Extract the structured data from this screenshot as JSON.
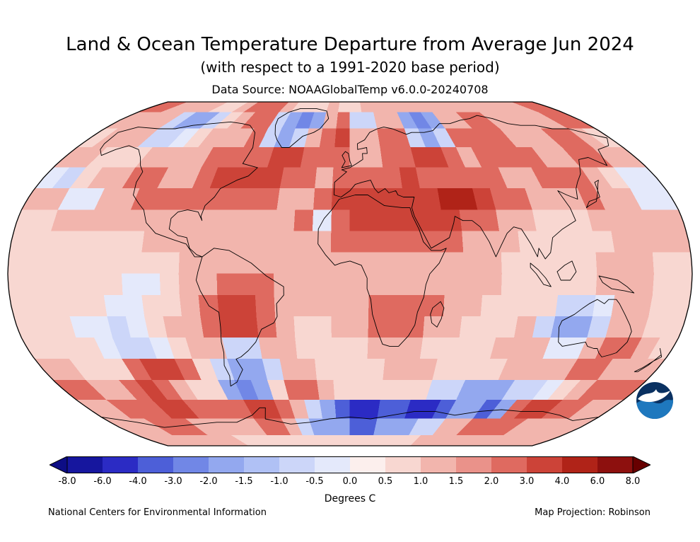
{
  "header": {
    "title": "Land & Ocean Temperature Departure from Average Jun 2024",
    "subtitle": "(with respect to a 1991-2020 base period)",
    "data_source": "Data Source: NOAAGlobalTemp v6.0.0-20240708"
  },
  "footer": {
    "left": "National Centers for Environmental Information",
    "right": "Map Projection: Robinson"
  },
  "colorbar": {
    "label": "Degrees C",
    "ticks": [
      "-8.0",
      "-6.0",
      "-4.0",
      "-3.0",
      "-2.0",
      "-1.5",
      "-1.0",
      "-0.5",
      "0.0",
      "0.5",
      "1.0",
      "1.5",
      "2.0",
      "3.0",
      "4.0",
      "6.0",
      "8.0"
    ]
  },
  "chart_data": {
    "type": "heatmap",
    "title": "Land & Ocean Temperature Departure from Average Jun 2024",
    "units": "Degrees C",
    "projection": "Robinson",
    "base_period": "1991-2020",
    "lat_start": 90,
    "lon_start": -180,
    "lat_step": 10,
    "lon_step": 10,
    "bins": [
      -8,
      -6,
      -4,
      -3,
      -2,
      -1.5,
      -1,
      -0.5,
      0,
      0.5,
      1,
      1.5,
      2,
      3,
      4,
      6,
      8
    ],
    "bin_colors": [
      "#16169e",
      "#2b2bc4",
      "#4d5fd8",
      "#7187e6",
      "#93a8ef",
      "#b0c1f5",
      "#ccd6f9",
      "#e4e9fb",
      "#fcefed",
      "#f8d7d1",
      "#f2b5ad",
      "#ea928a",
      "#df6a60",
      "#cc4338",
      "#b02318",
      "#8d100e"
    ],
    "under_color": "#0d0d85",
    "over_color": "#670000",
    "grid": [
      [
        2,
        2,
        1,
        1,
        1,
        1,
        0.5,
        0.5,
        1,
        2,
        2,
        2,
        1,
        0.5,
        0.5,
        0.5,
        1,
        0.5,
        0.5,
        1,
        1,
        1,
        1,
        1,
        1,
        1,
        1,
        1,
        1,
        1,
        1,
        1,
        1,
        1,
        2,
        2
      ],
      [
        1,
        1,
        1,
        1,
        -1,
        -2,
        -2,
        -1,
        0.5,
        1,
        2,
        2,
        -1,
        -2,
        -3,
        -2,
        1,
        2,
        -1,
        -1,
        1,
        1,
        -2,
        -3,
        -2,
        1,
        1,
        2,
        2,
        1,
        1,
        1,
        1,
        1,
        2,
        2
      ],
      [
        0.5,
        1,
        1,
        1,
        -1,
        -1,
        -0.5,
        0.5,
        1,
        1,
        1,
        2,
        -1,
        -2,
        -1,
        1,
        2,
        3,
        1,
        1,
        2,
        2,
        -1,
        -2,
        -1,
        2,
        2,
        2,
        2,
        1,
        1,
        1,
        2,
        2,
        1,
        0.5
      ],
      [
        1,
        1,
        0.5,
        0.5,
        0.5,
        1,
        1,
        1,
        1,
        2,
        2,
        2,
        2,
        3,
        3,
        2,
        2,
        2,
        1,
        1,
        2,
        2,
        3,
        3,
        2,
        1,
        2,
        2,
        2,
        2,
        1,
        1,
        2,
        2,
        1,
        1
      ],
      [
        -0.5,
        -1,
        0.5,
        1,
        1,
        2,
        2,
        1,
        1,
        2,
        3,
        3,
        3,
        3,
        2,
        2,
        1,
        2,
        2,
        2,
        2,
        3,
        2,
        2,
        2,
        2,
        2,
        1,
        1,
        2,
        2,
        2,
        1,
        0.5,
        -0.5,
        -0.5
      ],
      [
        1,
        1,
        -0.5,
        -0.5,
        1,
        1,
        2,
        2,
        2,
        2,
        2,
        2,
        2,
        2,
        1,
        1,
        2,
        3,
        3,
        3,
        3,
        3,
        3,
        4,
        4,
        3,
        2,
        2,
        1,
        1,
        1,
        2,
        1,
        1,
        -0.5,
        -0.5
      ],
      [
        0.5,
        0.5,
        1,
        1,
        1,
        1,
        1,
        1,
        1,
        1,
        1,
        1,
        1,
        1,
        1,
        2,
        -0.5,
        2,
        3,
        3,
        3,
        3,
        3,
        3,
        2,
        2,
        1,
        1,
        0.5,
        0.5,
        0.5,
        1,
        1,
        1,
        1,
        1
      ],
      [
        0.5,
        0.5,
        0.5,
        0.5,
        0.5,
        0.5,
        0.5,
        1,
        1,
        1,
        1,
        1,
        1,
        1,
        1,
        1,
        1,
        2,
        2,
        2,
        2,
        2,
        2,
        2,
        1,
        1,
        1,
        0.5,
        0.5,
        0.5,
        0.5,
        0.5,
        1,
        1,
        1,
        1
      ],
      [
        0.5,
        0.5,
        0.5,
        0.5,
        0.5,
        0.5,
        0.5,
        0.5,
        0.5,
        1,
        1,
        1,
        1,
        1,
        1,
        1,
        1,
        1,
        1,
        1,
        1,
        1,
        1,
        1,
        1,
        1,
        0.5,
        0.5,
        0.5,
        0.5,
        0.5,
        1,
        1,
        1,
        0.5,
        0.5
      ],
      [
        0.5,
        0.5,
        0.5,
        0.5,
        0.5,
        0.5,
        -0.5,
        -0.5,
        0.5,
        1,
        1,
        2,
        2,
        2,
        1,
        1,
        1,
        1,
        1,
        1,
        1,
        1,
        1,
        1,
        1,
        1,
        0.5,
        0.5,
        0.5,
        0.5,
        0.5,
        1,
        1,
        1,
        0.5,
        0.5
      ],
      [
        0.5,
        0.5,
        0.5,
        0.5,
        0.5,
        -0.5,
        -0.5,
        0.5,
        0.5,
        1,
        2,
        3,
        3,
        2,
        1,
        1,
        1,
        1,
        1,
        2,
        2,
        2,
        2,
        1,
        1,
        0.5,
        0.5,
        0.5,
        0.5,
        -1,
        -1,
        -0.5,
        1,
        1,
        0.5,
        0.5
      ],
      [
        0.5,
        0.5,
        0.5,
        -0.5,
        -0.5,
        -1,
        -0.5,
        0.5,
        1,
        1,
        2,
        3,
        3,
        2,
        1,
        0.5,
        0.5,
        1,
        1,
        2,
        2,
        2,
        1,
        1,
        0.5,
        0.5,
        0.5,
        1,
        -1,
        -2,
        -2,
        -1,
        1,
        1,
        0.5,
        0.5
      ],
      [
        0.5,
        0.5,
        0.5,
        0.5,
        -0.5,
        -1,
        -1,
        -0.5,
        0.5,
        1,
        1,
        -1,
        -1,
        1,
        1,
        0.5,
        0.5,
        0.5,
        0.5,
        1,
        1,
        1,
        0.5,
        0.5,
        0.5,
        0.5,
        1,
        1,
        1,
        -0.5,
        -0.5,
        1,
        2,
        2,
        1,
        0.5
      ],
      [
        1,
        1,
        0.5,
        0.5,
        0.5,
        2,
        3,
        3,
        2,
        0.5,
        -1,
        -2,
        -2,
        -1,
        1,
        1,
        0.5,
        0.5,
        0.5,
        0.5,
        1,
        1,
        1,
        0.5,
        0.5,
        0.5,
        0.5,
        1,
        1,
        1,
        1,
        2,
        2,
        1,
        1,
        1
      ],
      [
        2,
        2,
        1,
        1,
        2,
        3,
        2,
        1,
        0.5,
        0.5,
        -2,
        -3,
        -2,
        0.5,
        2,
        2,
        1,
        0.5,
        0.5,
        0.5,
        0.5,
        0.5,
        0.5,
        -1,
        -1,
        -2,
        -2,
        -2,
        -1,
        -1,
        -0.5,
        0.5,
        1,
        2,
        2,
        2
      ],
      [
        1,
        1,
        2,
        2,
        2,
        3,
        3,
        2,
        2,
        2,
        2,
        3,
        3,
        2,
        1,
        -1,
        -2,
        -4,
        -6,
        -6,
        -4,
        -4,
        -6,
        -6,
        -4,
        -2,
        -2,
        -4,
        -2,
        2,
        3,
        3,
        2,
        2,
        1,
        1
      ],
      [
        1,
        1,
        1,
        2,
        2,
        2,
        1,
        1,
        1,
        1,
        1,
        2,
        2,
        1,
        -1,
        -2,
        -2,
        -2,
        -4,
        -4,
        -2,
        -2,
        -2,
        -1,
        -1,
        1,
        1,
        2,
        2,
        2,
        2,
        1,
        1,
        1,
        1,
        1
      ],
      [
        1,
        1,
        1,
        1,
        1,
        1,
        1,
        1,
        0.5,
        0.5,
        0.5,
        0.5,
        0.5,
        0.5,
        0.5,
        0.5,
        0.5,
        0.5,
        0.5,
        0.5,
        0.5,
        0.5,
        0.5,
        0.5,
        1,
        1,
        1,
        1,
        1,
        1,
        1,
        1,
        1,
        1,
        1,
        1
      ]
    ]
  }
}
